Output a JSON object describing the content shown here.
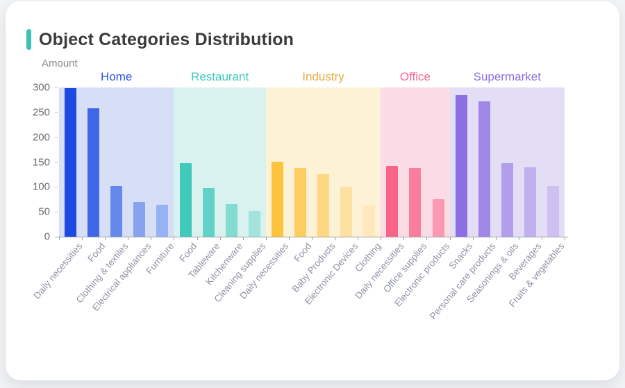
{
  "card": {
    "accent_color": "#3cc0b4"
  },
  "chart_data": {
    "type": "bar",
    "title": "Object Categories Distribution",
    "ylabel": "Amount",
    "xlabel": "",
    "ylim": [
      0,
      300
    ],
    "yticks": [
      0,
      50,
      100,
      150,
      200,
      250,
      300
    ],
    "grid": false,
    "legend_position": "grouped-band-labels-top",
    "axis_color": "#9aa0a6",
    "ytick_color": "#6b6b6b",
    "xlabel_color": "#8e92a4",
    "groups": [
      {
        "name": "Home",
        "label_color": "#2f55e2",
        "band_color": "#d7dff7",
        "bars": [
          {
            "label": "Daily necessities",
            "value": 298,
            "color": "#1c4ae0"
          },
          {
            "label": "Food",
            "value": 258,
            "color": "#3f66e6"
          },
          {
            "label": "Clothing & textiles",
            "value": 102,
            "color": "#6488ec"
          },
          {
            "label": "Electrical appliances",
            "value": 70,
            "color": "#87a3f0"
          },
          {
            "label": "Furniture",
            "value": 64,
            "color": "#98b1f2"
          }
        ]
      },
      {
        "name": "Restaurant",
        "label_color": "#3fcabc",
        "band_color": "#d9f2ef",
        "bars": [
          {
            "label": "Food",
            "value": 148,
            "color": "#41c9bc"
          },
          {
            "label": "Tableware",
            "value": 97,
            "color": "#62d2c8"
          },
          {
            "label": "Kitchenware",
            "value": 65,
            "color": "#83dbd2"
          },
          {
            "label": "Cleaning supplies",
            "value": 51,
            "color": "#a3e3dd"
          }
        ]
      },
      {
        "name": "Industry",
        "label_color": "#e8ab41",
        "band_color": "#fdf1d6",
        "bars": [
          {
            "label": "Daily necessities",
            "value": 150,
            "color": "#fec33c"
          },
          {
            "label": "Food",
            "value": 138,
            "color": "#fecd5f"
          },
          {
            "label": "Baby Products",
            "value": 126,
            "color": "#fed781"
          },
          {
            "label": "Electronic Devices",
            "value": 100,
            "color": "#fee0a2"
          },
          {
            "label": "Clothing",
            "value": 63,
            "color": "#fee8bc"
          }
        ]
      },
      {
        "name": "Office",
        "label_color": "#fa6a8e",
        "band_color": "#fbdbe5",
        "bars": [
          {
            "label": "Daily necessities",
            "value": 142,
            "color": "#fa6388"
          },
          {
            "label": "Office supplies",
            "value": 138,
            "color": "#fa7d9d"
          },
          {
            "label": "Electronic products",
            "value": 75,
            "color": "#fb98b3"
          }
        ]
      },
      {
        "name": "Supermarket",
        "label_color": "#8b72de",
        "band_color": "#e3ddf6",
        "bars": [
          {
            "label": "Snacks",
            "value": 285,
            "color": "#8c6fe3"
          },
          {
            "label": "Personal care products",
            "value": 272,
            "color": "#a087e7"
          },
          {
            "label": "Seasonings & oils",
            "value": 148,
            "color": "#b39eeb"
          },
          {
            "label": "Beverages",
            "value": 140,
            "color": "#c1b0ee"
          },
          {
            "label": "Fruits & vegetables",
            "value": 102,
            "color": "#cec1f1"
          }
        ]
      }
    ]
  }
}
